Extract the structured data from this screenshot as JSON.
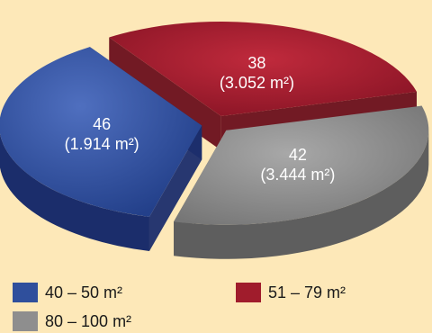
{
  "chart_data": {
    "type": "pie",
    "style": "3d-exploded",
    "slices": [
      {
        "category": "40 – 50 m²",
        "value": 46,
        "area_label": "(1.914 m²)",
        "color": "#2f4f9c",
        "side_color": "#1b2d6b"
      },
      {
        "category": "51 – 79 m²",
        "value": 38,
        "area_label": "(3.052 m²)",
        "color": "#a01c2c",
        "side_color": "#6a0f1b"
      },
      {
        "category": "80 – 100 m²",
        "value": 42,
        "area_label": "(3.444 m²)",
        "color": "#8e8e8e",
        "side_color": "#5e5e5e"
      }
    ],
    "legend": [
      {
        "label": "40 – 50 m²",
        "color": "#2f4f9c"
      },
      {
        "label": "51 – 79 m²",
        "color": "#a01c2c"
      },
      {
        "label": "80 – 100 m²",
        "color": "#8e8e8e"
      }
    ],
    "legend_position": "bottom"
  }
}
